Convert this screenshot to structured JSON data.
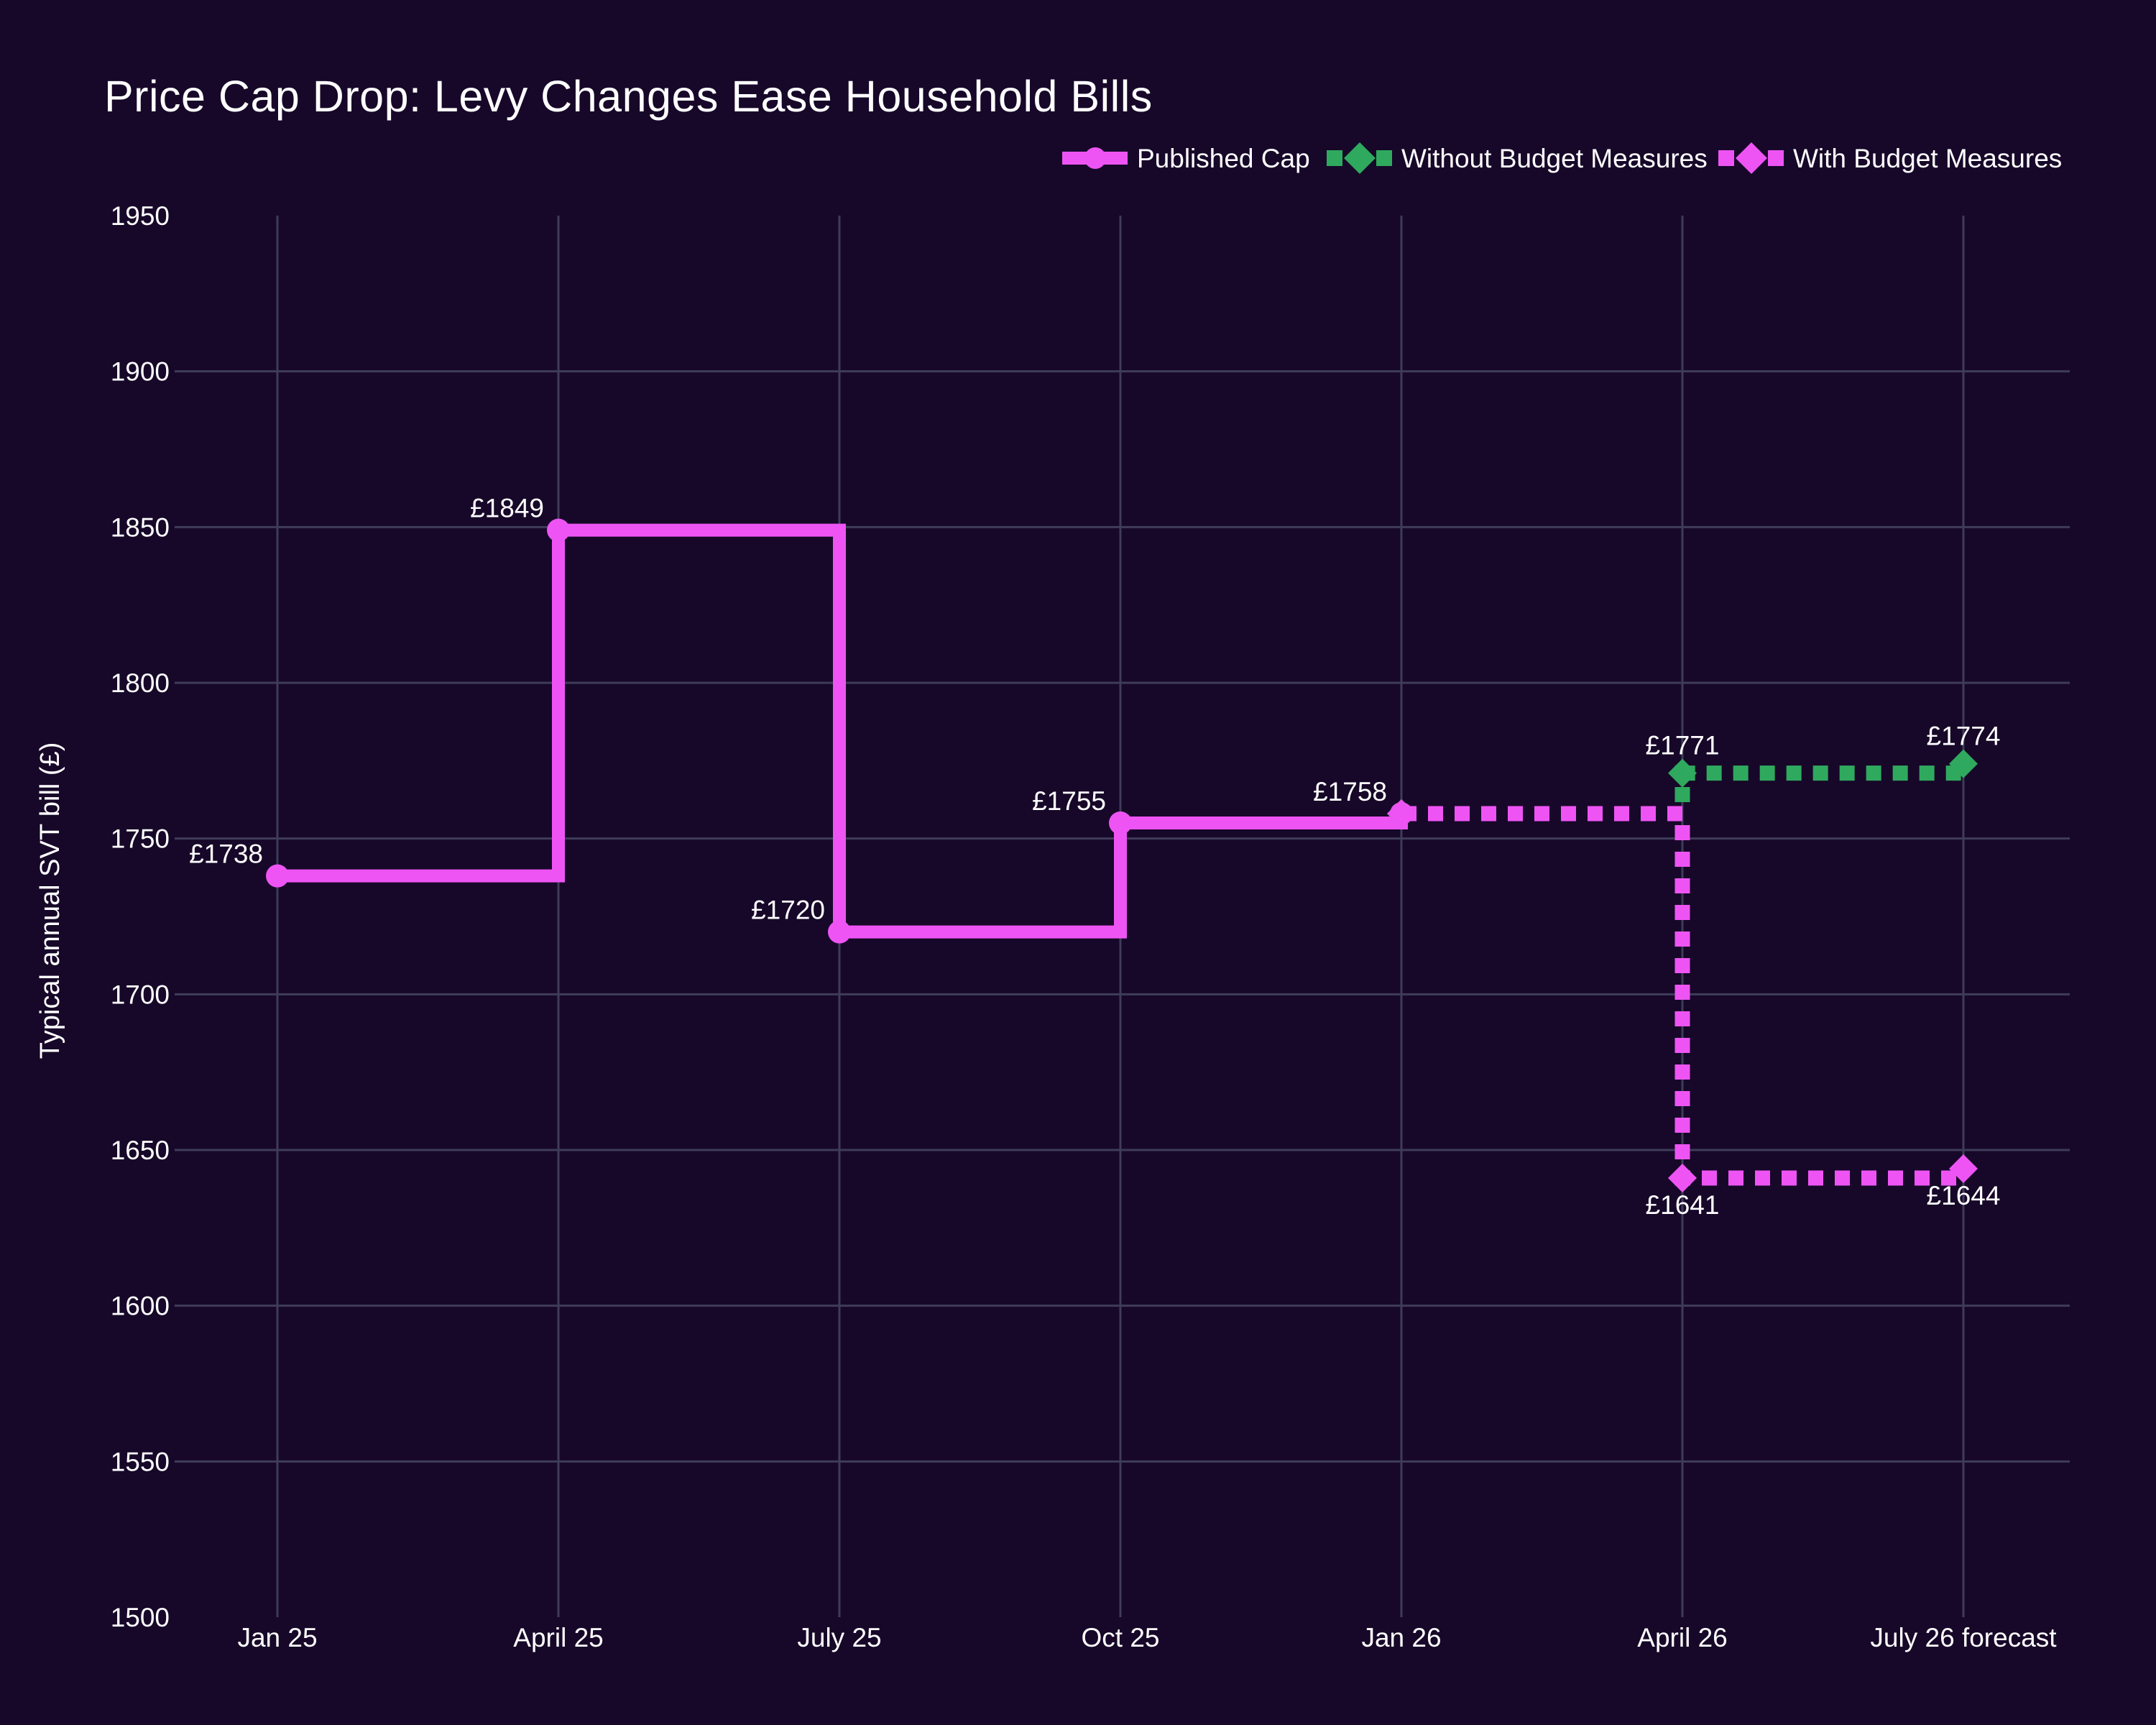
{
  "chart_data": {
    "type": "line",
    "step_mode": "hv",
    "title": "Price Cap Drop: Levy Changes Ease Household Bills",
    "xlabel": "",
    "ylabel": "Typical annual SVT bill (£)",
    "x_categories": [
      "Jan 25",
      "April 25",
      "July 25",
      "Oct 25",
      "Jan 26",
      "April 26",
      "July 26 forecast"
    ],
    "ylim": [
      1500,
      1950
    ],
    "yticks": [
      1500,
      1550,
      1600,
      1650,
      1700,
      1750,
      1800,
      1850,
      1900,
      1950
    ],
    "grid": true,
    "legend_position": "top-right",
    "colors": {
      "background": "#170829",
      "gridline": "#3f3c5a",
      "text": "#ffffff",
      "magenta": "#ee54f4",
      "green": "#2fa95e"
    },
    "series": [
      {
        "name": "Published Cap",
        "color": "#ee54f4",
        "line_style": "solid",
        "marker": "circle",
        "points": [
          {
            "xi": 0,
            "value": 1738,
            "label": "£1738",
            "label_pos": "above-left"
          },
          {
            "xi": 1,
            "value": 1849,
            "label": "£1849",
            "label_pos": "above-left"
          },
          {
            "xi": 2,
            "value": 1720,
            "label": "£1720",
            "label_pos": "above-left"
          },
          {
            "xi": 3,
            "value": 1755,
            "label": "£1755",
            "label_pos": "above-left"
          },
          {
            "xi": 4,
            "value": 1758,
            "label": "£1758",
            "label_pos": "above-left"
          }
        ]
      },
      {
        "name": "Without Budget Measures",
        "color": "#2fa95e",
        "line_style": "dashed",
        "marker": "diamond",
        "points": [
          {
            "xi": 4,
            "value": 1758,
            "label": "",
            "label_pos": ""
          },
          {
            "xi": 5,
            "value": 1771,
            "label": "£1771",
            "label_pos": "above"
          },
          {
            "xi": 6,
            "value": 1774,
            "label": "£1774",
            "label_pos": "above"
          }
        ]
      },
      {
        "name": "With Budget Measures",
        "color": "#ee54f4",
        "line_style": "dashed",
        "marker": "diamond",
        "points": [
          {
            "xi": 4,
            "value": 1758,
            "label": "",
            "label_pos": ""
          },
          {
            "xi": 5,
            "value": 1641,
            "label": "£1641",
            "label_pos": "below"
          },
          {
            "xi": 6,
            "value": 1644,
            "label": "£1644",
            "label_pos": "below"
          }
        ]
      }
    ],
    "legend": [
      "Published Cap",
      "Without Budget Measures",
      "With Budget Measures"
    ]
  }
}
